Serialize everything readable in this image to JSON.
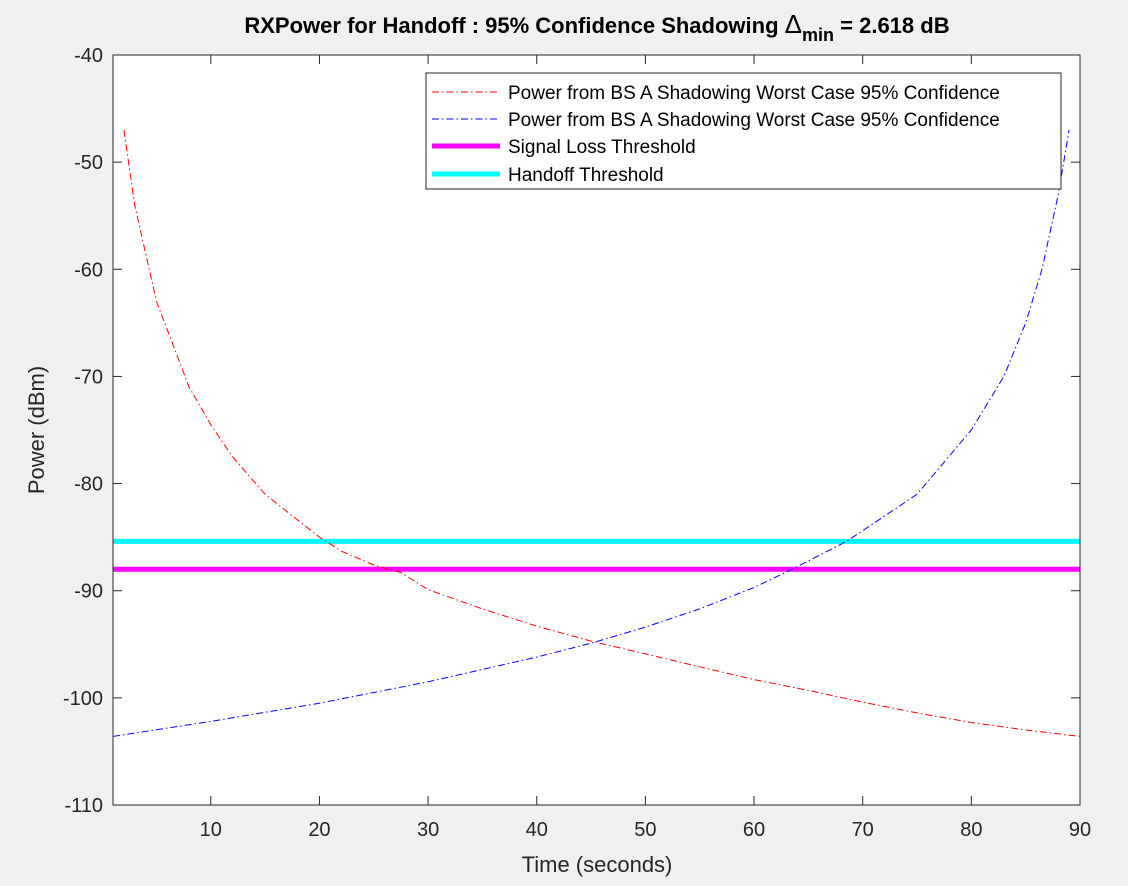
{
  "chart_data": {
    "type": "line",
    "title": {
      "prefix": "RXPower for Handoff : 95% Confidence Shadowing ",
      "symbol": "Δ",
      "subscript": "min",
      "suffix": " = 2.618 dB"
    },
    "xlabel": "Time (seconds)",
    "ylabel": "Power (dBm)",
    "xlim": [
      1,
      90
    ],
    "ylim": [
      -110,
      -40
    ],
    "xticks": [
      10,
      20,
      30,
      40,
      50,
      60,
      70,
      80,
      90
    ],
    "yticks": [
      -40,
      -50,
      -60,
      -70,
      -80,
      -90,
      -100,
      -110
    ],
    "grid": false,
    "legend_position": "top-right",
    "series": [
      {
        "name": "Power from BS A Shadowing Worst Case 95% Confidence",
        "color": "#ff0000",
        "style": "dash-dot",
        "x": [
          2,
          3,
          5,
          8,
          10,
          12,
          15,
          20,
          22,
          25,
          27.5,
          30,
          35,
          40,
          45,
          50,
          55,
          60,
          65,
          70,
          75,
          80,
          85,
          90
        ],
        "y": [
          -47,
          -54,
          -63,
          -71,
          -74.5,
          -77.5,
          -81,
          -85,
          -86.3,
          -87.6,
          -88.3,
          -89.9,
          -91.7,
          -93.3,
          -94.7,
          -95.9,
          -97.1,
          -98.3,
          -99.3,
          -100.4,
          -101.4,
          -102.3,
          -103.0,
          -103.6
        ]
      },
      {
        "name": "Power from BS A Shadowing Worst Case 95% Confidence",
        "color": "#0000ff",
        "style": "dash-dot",
        "x": [
          1,
          10,
          20,
          30,
          40,
          45,
          50,
          55,
          60,
          63.5,
          68.5,
          70,
          75,
          80,
          83,
          85,
          86.5,
          88,
          89
        ],
        "y": [
          -103.6,
          -102.2,
          -100.5,
          -98.5,
          -96.2,
          -94.9,
          -93.4,
          -91.7,
          -89.7,
          -88.0,
          -85.4,
          -84.4,
          -81.0,
          -75.0,
          -70.0,
          -65.0,
          -60.0,
          -53.0,
          -47.0
        ]
      },
      {
        "name": "Signal Loss Threshold",
        "color": "#ff00ff",
        "style": "solid-thick",
        "x": [
          1,
          90
        ],
        "y": [
          -88,
          -88
        ]
      },
      {
        "name": "Handoff Threshold",
        "color": "#00ffff",
        "style": "solid-thick",
        "x": [
          1,
          90
        ],
        "y": [
          -85.4,
          -85.4
        ]
      }
    ]
  }
}
